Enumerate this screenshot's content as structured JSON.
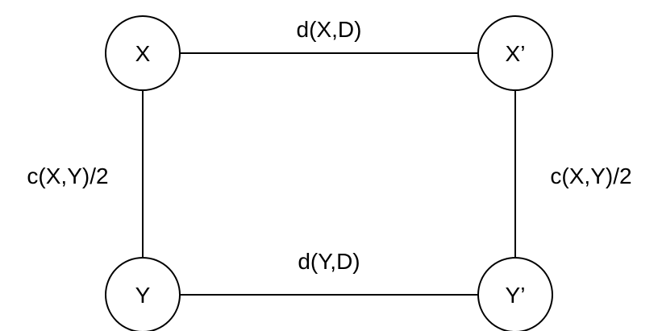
{
  "nodes": {
    "x": "X",
    "x_prime": "X’",
    "y": "Y",
    "y_prime": "Y’"
  },
  "edges": {
    "top": "d(X,D)",
    "bottom": "d(Y,D)",
    "left": "c(X,Y)/2",
    "right": "c(X,Y)/2"
  }
}
